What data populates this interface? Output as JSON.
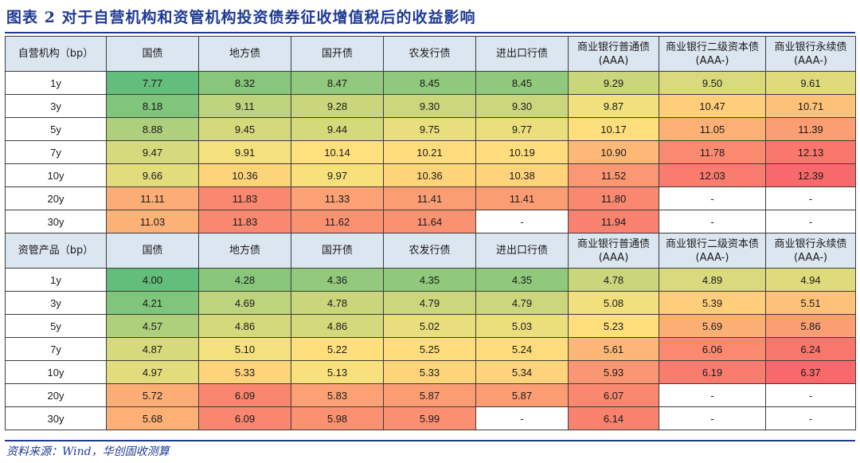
{
  "title": "图表 2  对于自营机构和资管机构投资债券征收增值税后的收益影响",
  "source": "资料来源：Wind，华创固收测算",
  "columns": [
    "国债",
    "地方债",
    "国开债",
    "农发行债",
    "进出口行债",
    "商业银行普通债\n(AAA)",
    "商业银行二级资本债\n(AAA-)",
    "商业银行永续债\n(AAA-)"
  ],
  "colors": {
    "green": "#63be7b",
    "yellow": "#ffe37d",
    "red": "#f8696b",
    "header_bg": "#dce6f1",
    "title": "#1f3a93"
  },
  "sections": [
    {
      "label": "自营机构（bp）",
      "rows": [
        {
          "label": "1y",
          "values": [
            "7.77",
            "8.32",
            "8.47",
            "8.45",
            "8.45",
            "9.29",
            "9.50",
            "9.61"
          ]
        },
        {
          "label": "3y",
          "values": [
            "8.18",
            "9.11",
            "9.28",
            "9.30",
            "9.30",
            "9.87",
            "10.47",
            "10.71"
          ]
        },
        {
          "label": "5y",
          "values": [
            "8.88",
            "9.45",
            "9.44",
            "9.75",
            "9.77",
            "10.17",
            "11.05",
            "11.39"
          ]
        },
        {
          "label": "7y",
          "values": [
            "9.47",
            "9.91",
            "10.14",
            "10.21",
            "10.19",
            "10.90",
            "11.78",
            "12.13"
          ]
        },
        {
          "label": "10y",
          "values": [
            "9.66",
            "10.36",
            "9.97",
            "10.36",
            "10.38",
            "11.52",
            "12.03",
            "12.39"
          ]
        },
        {
          "label": "20y",
          "values": [
            "11.11",
            "11.83",
            "11.33",
            "11.41",
            "11.41",
            "11.80",
            "-",
            "-"
          ]
        },
        {
          "label": "30y",
          "values": [
            "11.03",
            "11.83",
            "11.62",
            "11.64",
            "-",
            "11.94",
            "-",
            "-"
          ]
        }
      ]
    },
    {
      "label": "资管产品（bp）",
      "rows": [
        {
          "label": "1y",
          "values": [
            "4.00",
            "4.28",
            "4.36",
            "4.35",
            "4.35",
            "4.78",
            "4.89",
            "4.94"
          ]
        },
        {
          "label": "3y",
          "values": [
            "4.21",
            "4.69",
            "4.78",
            "4.79",
            "4.79",
            "5.08",
            "5.39",
            "5.51"
          ]
        },
        {
          "label": "5y",
          "values": [
            "4.57",
            "4.86",
            "4.86",
            "5.02",
            "5.03",
            "5.23",
            "5.69",
            "5.86"
          ]
        },
        {
          "label": "7y",
          "values": [
            "4.87",
            "5.10",
            "5.22",
            "5.25",
            "5.24",
            "5.61",
            "6.06",
            "6.24"
          ]
        },
        {
          "label": "10y",
          "values": [
            "4.97",
            "5.33",
            "5.13",
            "5.33",
            "5.34",
            "5.93",
            "6.19",
            "6.37"
          ]
        },
        {
          "label": "20y",
          "values": [
            "5.72",
            "6.09",
            "5.83",
            "5.87",
            "5.87",
            "6.07",
            "-",
            "-"
          ]
        },
        {
          "label": "30y",
          "values": [
            "5.68",
            "6.09",
            "5.98",
            "5.99",
            "-",
            "6.14",
            "-",
            "-"
          ]
        }
      ]
    }
  ]
}
